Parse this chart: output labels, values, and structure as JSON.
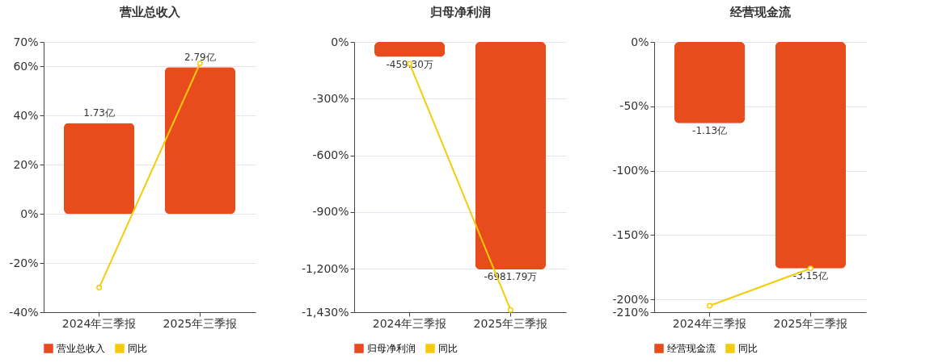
{
  "chart_data": [
    {
      "type": "bar",
      "title": "营业总收入",
      "categories": [
        "2024年三季报",
        "2025年三季报"
      ],
      "series": [
        {
          "name": "营业总收入",
          "axis": "y2",
          "color": "#e84b1c",
          "values": [
            1.73,
            2.79
          ],
          "value_labels": [
            "1.73亿",
            "2.79亿"
          ]
        },
        {
          "name": "同比",
          "type": "line",
          "color": "#f5cc0a",
          "values": [
            -30,
            61.3
          ]
        }
      ],
      "ylim": [
        -40,
        70
      ],
      "yticks": [
        {
          "value": -40,
          "label": "-40%"
        },
        {
          "value": -20,
          "label": "-20%"
        },
        {
          "value": 0,
          "label": "0%"
        },
        {
          "value": 20,
          "label": "20%"
        },
        {
          "value": 40,
          "label": "40%"
        },
        {
          "value": 60,
          "label": "60%"
        },
        {
          "value": 70,
          "label": "70%"
        }
      ],
      "y2lim": [
        -1.869,
        3.271
      ],
      "grid": "y",
      "legend": "bottom",
      "marker": "circle"
    },
    {
      "type": "bar",
      "title": "归母净利润",
      "categories": [
        "2024年三季报",
        "2025年三季报"
      ],
      "series": [
        {
          "name": "归母净利润",
          "axis": "y2",
          "color": "#e84b1c",
          "values": [
            -459.3,
            -6981.79
          ],
          "value_labels": [
            "-459.30万",
            "-6981.79万"
          ]
        },
        {
          "name": "同比",
          "type": "line",
          "color": "#f5cc0a",
          "values": [
            -115,
            -1418
          ]
        }
      ],
      "ylim": [
        -1430,
        0
      ],
      "yticks": [
        {
          "value": -1430,
          "label": "-1,430%"
        },
        {
          "value": -1200,
          "label": "-1,200%"
        },
        {
          "value": -900,
          "label": "-900%"
        },
        {
          "value": -600,
          "label": "-600%"
        },
        {
          "value": -300,
          "label": "-300%"
        },
        {
          "value": 0,
          "label": "0%"
        }
      ],
      "y2lim": [
        -8293,
        0
      ],
      "grid": "y",
      "legend": "bottom",
      "marker": "circle"
    },
    {
      "type": "bar",
      "title": "经营现金流",
      "categories": [
        "2024年三季报",
        "2025年三季报"
      ],
      "series": [
        {
          "name": "经营现金流",
          "axis": "y2",
          "color": "#e84b1c",
          "values": [
            -1.13,
            -3.15
          ],
          "value_labels": [
            "-1.13亿",
            "-3.15亿"
          ]
        },
        {
          "name": "同比",
          "type": "line",
          "color": "#f5cc0a",
          "values": [
            -205,
            -176
          ]
        }
      ],
      "ylim": [
        -210,
        0
      ],
      "yticks": [
        {
          "value": -210,
          "label": "-210%"
        },
        {
          "value": -200,
          "label": "-200%"
        },
        {
          "value": -150,
          "label": "-150%"
        },
        {
          "value": -100,
          "label": "-100%"
        },
        {
          "value": -50,
          "label": "-50%"
        },
        {
          "value": 0,
          "label": "0%"
        }
      ],
      "y2lim": [
        -3.76,
        0
      ],
      "grid": "y",
      "legend": "bottom",
      "marker": "circle"
    }
  ]
}
